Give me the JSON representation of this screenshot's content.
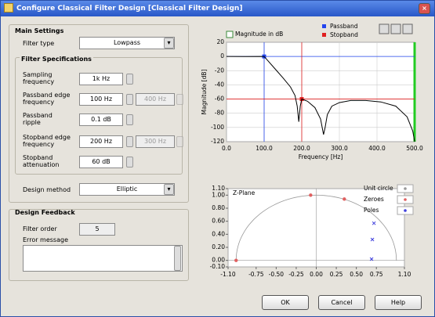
{
  "window": {
    "title": "Configure Classical Filter Design [Classical Filter Design]"
  },
  "main_settings": {
    "title": "Main Settings",
    "filter_type_label": "Filter type",
    "filter_type": "Lowpass"
  },
  "filter_specifications": {
    "title": "Filter Specifications",
    "fields": [
      {
        "label": "Sampling frequency",
        "value": "1k Hz"
      },
      {
        "label": "Passband edge frequency",
        "value": "100 Hz",
        "value2": "400 Hz"
      },
      {
        "label": "Passband ripple",
        "value": "0.1 dB"
      },
      {
        "label": "Stopband edge frequency",
        "value": "200 Hz",
        "value2": "300 Hz"
      },
      {
        "label": "Stopband attenuation",
        "value": "60 dB"
      }
    ]
  },
  "design_method": {
    "label": "Design method",
    "value": "Elliptic"
  },
  "design_feedback": {
    "title": "Design Feedback",
    "filter_order_label": "Filter order",
    "filter_order": "5",
    "error_label": "Error message"
  },
  "magnitude_plot": {
    "checkbox_label": "Magnitude in dB",
    "xlabel": "Frequency [Hz]",
    "ylabel": "Magnitude [dB]",
    "xlim": [
      0,
      500
    ],
    "ylim": [
      -120,
      20
    ],
    "xticks": [
      {
        "value": 0,
        "label": "0.0"
      },
      {
        "value": 100,
        "label": "100.0"
      },
      {
        "value": 200,
        "label": "200.0"
      },
      {
        "value": 300,
        "label": "300.0"
      },
      {
        "value": 400,
        "label": "400.0"
      },
      {
        "value": 500,
        "label": "500.0"
      }
    ],
    "yticks": [
      20,
      0,
      -20,
      -40,
      -60,
      -80,
      -100,
      -120
    ],
    "color": "#000000",
    "x": [
      0,
      50,
      90,
      100,
      110,
      130,
      150,
      170,
      182,
      188,
      192,
      196,
      200,
      215,
      235,
      250,
      258,
      262,
      268,
      280,
      300,
      330,
      370,
      410,
      450,
      480,
      495,
      500
    ],
    "values": [
      0,
      -0.1,
      0,
      -0.1,
      -6,
      -18,
      -30,
      -43,
      -55,
      -70,
      -92,
      -70,
      -60,
      -63,
      -72,
      -88,
      -110,
      -100,
      -82,
      -70,
      -65,
      -62,
      -62,
      -64,
      -70,
      -85,
      -105,
      -120
    ],
    "cursors": [
      {
        "name": "Passband",
        "color": "#2244ee",
        "x": 100,
        "y": 0
      },
      {
        "name": "Stopband",
        "color": "#e02020",
        "x": 200,
        "y": -60
      }
    ],
    "end_color": "#22cc22"
  },
  "z_plane": {
    "label": "Z-Plane",
    "xlim": [
      -1.1,
      1.1
    ],
    "ylim": [
      -0.1,
      1.1
    ],
    "xticks": [
      {
        "value": -1.1,
        "label": "-1.10"
      },
      {
        "value": -0.75,
        "label": "-0.75"
      },
      {
        "value": -0.5,
        "label": "-0.50"
      },
      {
        "value": -0.25,
        "label": "-0.25"
      },
      {
        "value": 0,
        "label": "0.00"
      },
      {
        "value": 0.25,
        "label": "0.25"
      },
      {
        "value": 0.5,
        "label": "0.50"
      },
      {
        "value": 0.75,
        "label": "0.75"
      },
      {
        "value": 1.1,
        "label": "1.10"
      }
    ],
    "yticks": [
      {
        "value": 1.1,
        "label": "1.10"
      },
      {
        "value": 1,
        "label": "1.00"
      },
      {
        "value": 0.8,
        "label": "0.80"
      },
      {
        "value": 0.6,
        "label": "0.60"
      },
      {
        "value": 0.4,
        "label": "0.40"
      },
      {
        "value": 0.2,
        "label": "0.20"
      },
      {
        "value": 0,
        "label": "0.00"
      },
      {
        "value": -0.1,
        "label": "-0.10"
      }
    ],
    "unit_circle": {
      "name": "Unit circle",
      "color": "#999999"
    },
    "zeros": {
      "name": "Zeroes",
      "color": "#e06060",
      "x": [
        -1,
        -0.07,
        0.35
      ],
      "y": [
        0,
        1,
        0.94
      ]
    },
    "poles": {
      "name": "Poles",
      "color": "#4040dd",
      "x": [
        0.72,
        0.7,
        0.69
      ],
      "y": [
        0.57,
        0.32,
        0.02
      ]
    }
  },
  "buttons": [
    "OK",
    "Cancel",
    "Help"
  ]
}
